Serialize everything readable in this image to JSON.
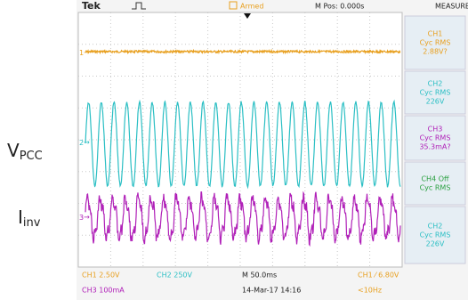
{
  "side_labels": [
    {
      "main": "V",
      "sub": "PCC"
    },
    {
      "main": "I",
      "sub": "inv"
    }
  ],
  "header": {
    "brand": "Tek",
    "status": "Armed",
    "position": "M Pos: 0.000s",
    "panel_title": "MEASURE"
  },
  "channel_markers": [
    "1",
    "2",
    "3"
  ],
  "measurements": [
    {
      "lines": [
        "CH1",
        "Cyc RMS",
        "2.88V?"
      ]
    },
    {
      "lines": [
        "CH2",
        "Cyc RMS",
        "226V"
      ]
    },
    {
      "lines": [
        "CH3",
        "Cyc RMS",
        "35.3mA?"
      ]
    },
    {
      "lines": [
        "CH4 Off",
        "Cyc RMS"
      ]
    },
    {
      "lines": [
        "CH2",
        "Cyc RMS",
        "226V"
      ]
    }
  ],
  "footer": {
    "ch1_scale": "CH1  2.50V",
    "ch2_scale": "CH2  250V",
    "timebase": "M 50.0ms",
    "trigger": "CH1 ⁄ 6.80V",
    "ch3_scale": "CH3  100mA",
    "date": "14-Mar-17 14:16",
    "frequency": "<10Hz"
  }
}
